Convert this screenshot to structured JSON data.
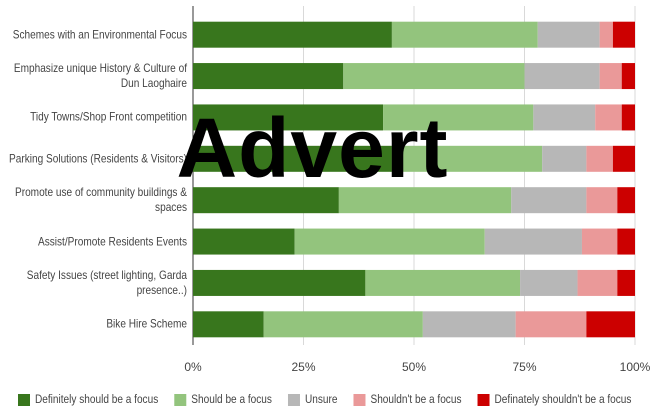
{
  "chart_data": {
    "type": "stacked_barh",
    "annotation": "Advert",
    "categories": [
      "Schemes with an Environmental Focus",
      "Emphasize unique History & Culture of Dun Laoghaire",
      "Tidy Towns/Shop Front competition",
      "Parking Solutions (Residents & Visitors)",
      "Promote use of community buildings & spaces",
      "Assist/Promote Residents Events",
      "Safety Issues (street lighting, Garda presence..)",
      "Bike Hire Scheme"
    ],
    "series": [
      {
        "name": "Definitely should be a focus",
        "color": "#38761d",
        "values": [
          45,
          34,
          43,
          45,
          33,
          23,
          39,
          16
        ]
      },
      {
        "name": "Should be a focus",
        "color": "#93c47d",
        "values": [
          33,
          41,
          34,
          34,
          39,
          43,
          35,
          36
        ]
      },
      {
        "name": "Unsure",
        "color": "#b7b7b7",
        "values": [
          14,
          17,
          14,
          10,
          17,
          22,
          13,
          21
        ]
      },
      {
        "name": "Shouldn't be a focus",
        "color": "#ea9999",
        "values": [
          3,
          5,
          6,
          6,
          7,
          8,
          9,
          16
        ]
      },
      {
        "name": "Definately shouldn't be a focus",
        "color": "#cc0000",
        "values": [
          5,
          3,
          3,
          5,
          4,
          4,
          4,
          11
        ]
      }
    ],
    "xlim": [
      0,
      100
    ],
    "xticks": [
      {
        "value": 0,
        "label": "0%"
      },
      {
        "value": 25,
        "label": "25%"
      },
      {
        "value": 50,
        "label": "50%"
      },
      {
        "value": 75,
        "label": "75%"
      },
      {
        "value": 100,
        "label": "100%"
      }
    ],
    "grid": true
  }
}
